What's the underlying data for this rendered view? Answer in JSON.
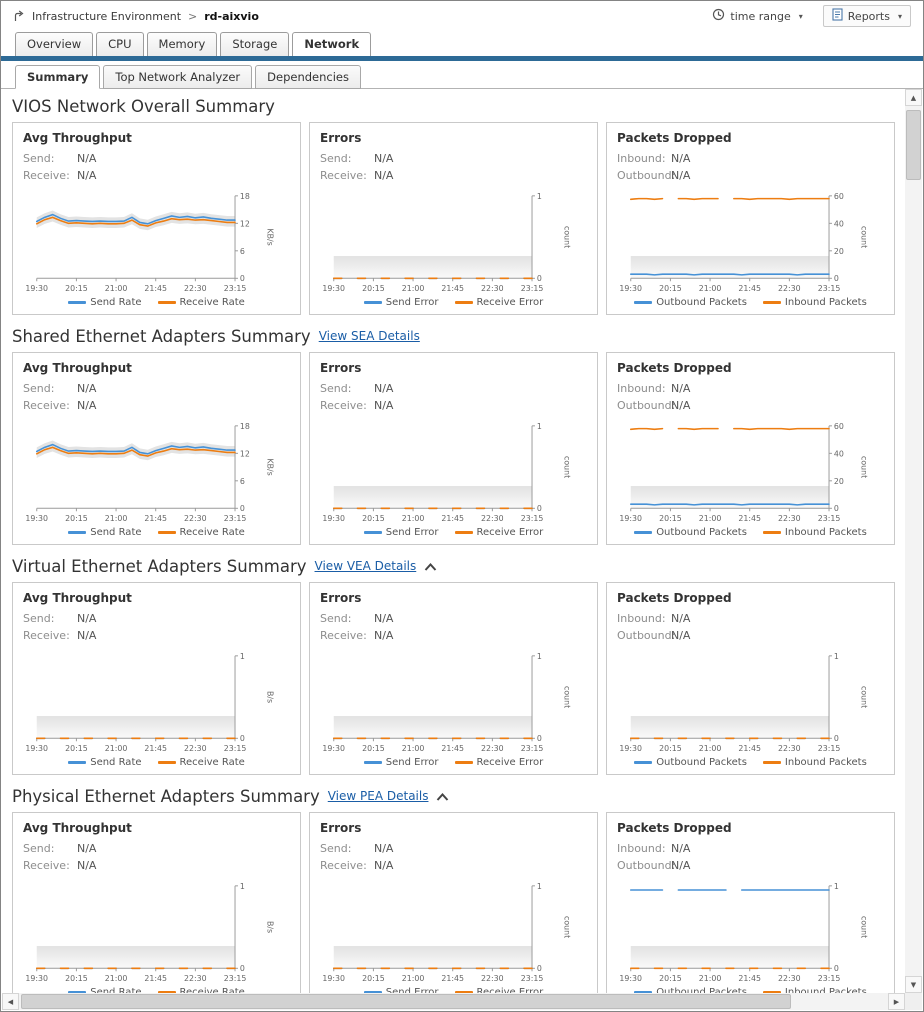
{
  "header": {
    "breadcrumb_root": "Infrastructure Environment",
    "breadcrumb_separator": ">",
    "breadcrumb_current": "rd-aixvio",
    "time_range_label": "time range",
    "reports_label": "Reports"
  },
  "icons": {
    "caret_down": "▾",
    "scroll_up": "▲",
    "scroll_down": "▼",
    "scroll_left": "◀",
    "scroll_right": "▶"
  },
  "main_tabs": [
    "Overview",
    "CPU",
    "Memory",
    "Storage",
    "Network"
  ],
  "active_main_tab": "Network",
  "sub_tabs": [
    "Summary",
    "Top Network Analyzer",
    "Dependencies"
  ],
  "active_sub_tab": "Summary",
  "colors": {
    "series_blue": "#4691d6",
    "series_orange": "#ed7d11",
    "tab_indicator": "#2d6a96",
    "link": "#1a5da6"
  },
  "shared": {
    "zero_dash": [
      0,
      0,
      null,
      0,
      0,
      null,
      0,
      0,
      null,
      0,
      0,
      null,
      0,
      0,
      null,
      0,
      0,
      null,
      0,
      0,
      null,
      0,
      0,
      null,
      0,
      0
    ],
    "tp_send": [
      12.4,
      13.3,
      13.9,
      13.1,
      12.5,
      12.6,
      12.5,
      12.4,
      12.5,
      12.4,
      12.4,
      12.5,
      13.3,
      12.2,
      11.9,
      12.6,
      13.1,
      13.6,
      13.3,
      13.5,
      13.2,
      13.4,
      13.1,
      12.9,
      12.7,
      12.7
    ],
    "tp_recv": [
      11.9,
      12.8,
      13.3,
      12.6,
      12.0,
      12.1,
      12.0,
      11.9,
      12.0,
      11.9,
      11.9,
      12.0,
      12.7,
      11.7,
      11.4,
      12.1,
      12.5,
      13.0,
      12.8,
      12.9,
      12.7,
      12.8,
      12.6,
      12.4,
      12.2,
      12.2
    ],
    "drop_outbound": [
      3,
      3,
      3,
      2.5,
      3,
      3,
      3,
      3,
      2.5,
      3,
      3,
      3,
      3,
      3,
      2.5,
      3,
      3,
      3,
      3,
      3,
      3,
      2.5,
      3,
      3,
      3,
      3
    ],
    "drop_inbound": [
      57.5,
      58,
      58,
      57.5,
      58,
      null,
      58,
      58,
      57.5,
      58,
      58,
      58,
      null,
      58,
      58,
      57.5,
      58,
      58,
      58,
      58,
      57.5,
      58,
      58,
      58,
      58,
      58
    ],
    "pea_outbound": [
      0.95,
      0.95,
      0.95,
      0.95,
      0.95,
      null,
      0.95,
      0.95,
      0.95,
      0.95,
      0.95,
      0.95,
      0.95,
      null,
      0.95,
      0.95,
      0.95,
      0.95,
      0.95,
      0.95,
      0.95,
      0.95,
      0.95,
      0.95,
      0.95,
      0.95
    ]
  },
  "sections": [
    {
      "title": "VIOS Network Overall Summary",
      "link": null,
      "collapsible": false,
      "panels": [
        {
          "title": "Avg Throughput",
          "stats": [
            {
              "label": "Send:",
              "value": "N/A"
            },
            {
              "label": "Receive:",
              "value": "N/A"
            }
          ],
          "chart": {
            "type": "line",
            "x_labels": [
              "19:30",
              "20:15",
              "21:00",
              "21:45",
              "22:30",
              "23:15"
            ],
            "ylabel": "KB/s",
            "ylim": [
              0,
              18
            ],
            "yticks": [
              0,
              6,
              12,
              18
            ],
            "band": "envelope",
            "series": [
              {
                "name": "Send Rate",
                "color": "#4691d6",
                "values_ref": "tp_send"
              },
              {
                "name": "Receive Rate",
                "color": "#ed7d11",
                "values_ref": "tp_recv"
              }
            ]
          }
        },
        {
          "title": "Errors",
          "stats": [
            {
              "label": "Send:",
              "value": "N/A"
            },
            {
              "label": "Receive:",
              "value": "N/A"
            }
          ],
          "chart": {
            "type": "line",
            "x_labels": [
              "19:30",
              "20:15",
              "21:00",
              "21:45",
              "22:30",
              "23:15"
            ],
            "ylabel": "count",
            "ylim": [
              0,
              1
            ],
            "yticks": [
              0,
              1
            ],
            "band": "bottom",
            "series": [
              {
                "name": "Send Error",
                "color": "#4691d6",
                "values_ref": "zero_dash"
              },
              {
                "name": "Receive Error",
                "color": "#ed7d11",
                "values_ref": "zero_dash"
              }
            ]
          }
        },
        {
          "title": "Packets Dropped",
          "stats": [
            {
              "label": "Inbound:",
              "value": "N/A"
            },
            {
              "label": "Outbound:",
              "value": "N/A"
            }
          ],
          "chart": {
            "type": "line",
            "x_labels": [
              "19:30",
              "20:15",
              "21:00",
              "21:45",
              "22:30",
              "23:15"
            ],
            "ylabel": "count",
            "ylim": [
              0,
              60
            ],
            "yticks": [
              0,
              20,
              40,
              60
            ],
            "band": "bottom",
            "series": [
              {
                "name": "Outbound Packets",
                "color": "#4691d6",
                "values_ref": "drop_outbound"
              },
              {
                "name": "Inbound Packets",
                "color": "#ed7d11",
                "values_ref": "drop_inbound"
              }
            ]
          }
        }
      ]
    },
    {
      "title": "Shared Ethernet Adapters Summary",
      "link": "View SEA Details",
      "collapsible": false,
      "panels": [
        {
          "title": "Avg Throughput",
          "stats": [
            {
              "label": "Send:",
              "value": "N/A"
            },
            {
              "label": "Receive:",
              "value": "N/A"
            }
          ],
          "chart": {
            "type": "line",
            "x_labels": [
              "19:30",
              "20:15",
              "21:00",
              "21:45",
              "22:30",
              "23:15"
            ],
            "ylabel": "KB/s",
            "ylim": [
              0,
              18
            ],
            "yticks": [
              0,
              6,
              12,
              18
            ],
            "band": "envelope",
            "series": [
              {
                "name": "Send Rate",
                "color": "#4691d6",
                "values_ref": "tp_send"
              },
              {
                "name": "Receive Rate",
                "color": "#ed7d11",
                "values_ref": "tp_recv"
              }
            ]
          }
        },
        {
          "title": "Errors",
          "stats": [
            {
              "label": "Send:",
              "value": "N/A"
            },
            {
              "label": "Receive:",
              "value": "N/A"
            }
          ],
          "chart": {
            "type": "line",
            "x_labels": [
              "19:30",
              "20:15",
              "21:00",
              "21:45",
              "22:30",
              "23:15"
            ],
            "ylabel": "count",
            "ylim": [
              0,
              1
            ],
            "yticks": [
              0,
              1
            ],
            "band": "bottom",
            "series": [
              {
                "name": "Send Error",
                "color": "#4691d6",
                "values_ref": "zero_dash"
              },
              {
                "name": "Receive Error",
                "color": "#ed7d11",
                "values_ref": "zero_dash"
              }
            ]
          }
        },
        {
          "title": "Packets Dropped",
          "stats": [
            {
              "label": "Inbound:",
              "value": "N/A"
            },
            {
              "label": "Outbound:",
              "value": "N/A"
            }
          ],
          "chart": {
            "type": "line",
            "x_labels": [
              "19:30",
              "20:15",
              "21:00",
              "21:45",
              "22:30",
              "23:15"
            ],
            "ylabel": "count",
            "ylim": [
              0,
              60
            ],
            "yticks": [
              0,
              20,
              40,
              60
            ],
            "band": "bottom",
            "series": [
              {
                "name": "Outbound Packets",
                "color": "#4691d6",
                "values_ref": "drop_outbound"
              },
              {
                "name": "Inbound Packets",
                "color": "#ed7d11",
                "values_ref": "drop_inbound"
              }
            ]
          }
        }
      ]
    },
    {
      "title": "Virtual Ethernet Adapters Summary",
      "link": "View VEA Details",
      "collapsible": true,
      "panels": [
        {
          "title": "Avg Throughput",
          "stats": [
            {
              "label": "Send:",
              "value": "N/A"
            },
            {
              "label": "Receive:",
              "value": "N/A"
            }
          ],
          "chart": {
            "type": "line",
            "x_labels": [
              "19:30",
              "20:15",
              "21:00",
              "21:45",
              "22:30",
              "23:15"
            ],
            "ylabel": "B/s",
            "ylim": [
              0,
              1
            ],
            "yticks": [
              0,
              1
            ],
            "band": "bottom",
            "series": [
              {
                "name": "Send Rate",
                "color": "#4691d6",
                "values_ref": "zero_dash"
              },
              {
                "name": "Receive Rate",
                "color": "#ed7d11",
                "values_ref": "zero_dash"
              }
            ]
          }
        },
        {
          "title": "Errors",
          "stats": [
            {
              "label": "Send:",
              "value": "N/A"
            },
            {
              "label": "Receive:",
              "value": "N/A"
            }
          ],
          "chart": {
            "type": "line",
            "x_labels": [
              "19:30",
              "20:15",
              "21:00",
              "21:45",
              "22:30",
              "23:15"
            ],
            "ylabel": "count",
            "ylim": [
              0,
              1
            ],
            "yticks": [
              0,
              1
            ],
            "band": "bottom",
            "series": [
              {
                "name": "Send Error",
                "color": "#4691d6",
                "values_ref": "zero_dash"
              },
              {
                "name": "Receive Error",
                "color": "#ed7d11",
                "values_ref": "zero_dash"
              }
            ]
          }
        },
        {
          "title": "Packets Dropped",
          "stats": [
            {
              "label": "Inbound:",
              "value": "N/A"
            },
            {
              "label": "Outbound:",
              "value": "N/A"
            }
          ],
          "chart": {
            "type": "line",
            "x_labels": [
              "19:30",
              "20:15",
              "21:00",
              "21:45",
              "22:30",
              "23:15"
            ],
            "ylabel": "count",
            "ylim": [
              0,
              1
            ],
            "yticks": [
              0,
              1
            ],
            "band": "bottom",
            "series": [
              {
                "name": "Outbound Packets",
                "color": "#4691d6",
                "values_ref": "zero_dash"
              },
              {
                "name": "Inbound Packets",
                "color": "#ed7d11",
                "values_ref": "zero_dash"
              }
            ]
          }
        }
      ]
    },
    {
      "title": "Physical Ethernet Adapters Summary",
      "link": "View PEA Details",
      "collapsible": true,
      "panels": [
        {
          "title": "Avg Throughput",
          "stats": [
            {
              "label": "Send:",
              "value": "N/A"
            },
            {
              "label": "Receive:",
              "value": "N/A"
            }
          ],
          "chart": {
            "type": "line",
            "x_labels": [
              "19:30",
              "20:15",
              "21:00",
              "21:45",
              "22:30",
              "23:15"
            ],
            "ylabel": "B/s",
            "ylim": [
              0,
              1
            ],
            "yticks": [
              0,
              1
            ],
            "band": "bottom",
            "series": [
              {
                "name": "Send Rate",
                "color": "#4691d6",
                "values_ref": "zero_dash"
              },
              {
                "name": "Receive Rate",
                "color": "#ed7d11",
                "values_ref": "zero_dash"
              }
            ]
          }
        },
        {
          "title": "Errors",
          "stats": [
            {
              "label": "Send:",
              "value": "N/A"
            },
            {
              "label": "Receive:",
              "value": "N/A"
            }
          ],
          "chart": {
            "type": "line",
            "x_labels": [
              "19:30",
              "20:15",
              "21:00",
              "21:45",
              "22:30",
              "23:15"
            ],
            "ylabel": "count",
            "ylim": [
              0,
              1
            ],
            "yticks": [
              0,
              1
            ],
            "band": "bottom",
            "series": [
              {
                "name": "Send Error",
                "color": "#4691d6",
                "values_ref": "zero_dash"
              },
              {
                "name": "Receive Error",
                "color": "#ed7d11",
                "values_ref": "zero_dash"
              }
            ]
          }
        },
        {
          "title": "Packets Dropped",
          "stats": [
            {
              "label": "Inbound:",
              "value": "N/A"
            },
            {
              "label": "Outbound:",
              "value": "N/A"
            }
          ],
          "chart": {
            "type": "line",
            "x_labels": [
              "19:30",
              "20:15",
              "21:00",
              "21:45",
              "22:30",
              "23:15"
            ],
            "ylabel": "count",
            "ylim": [
              0,
              1
            ],
            "yticks": [
              0,
              1
            ],
            "band": "bottom",
            "series": [
              {
                "name": "Outbound Packets",
                "color": "#4691d6",
                "values_ref": "pea_outbound"
              },
              {
                "name": "Inbound Packets",
                "color": "#ed7d11",
                "values_ref": "zero_dash"
              }
            ]
          }
        }
      ]
    }
  ]
}
